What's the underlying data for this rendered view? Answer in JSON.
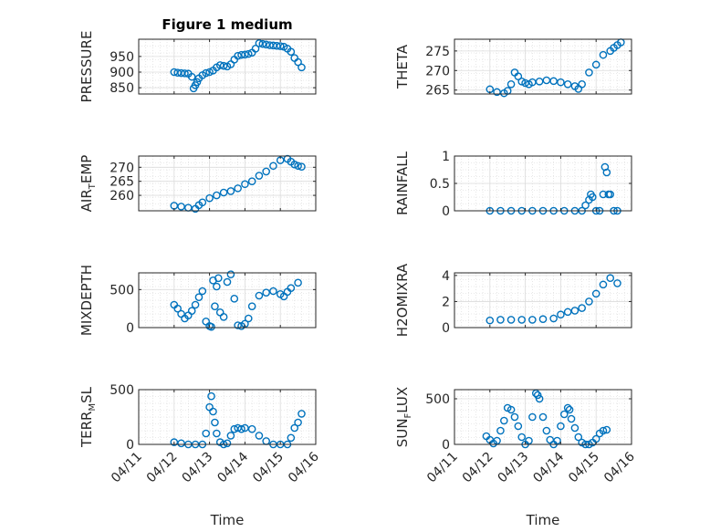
{
  "chart_data": [
    {
      "type": "scatter",
      "title": "Figure 1 medium",
      "ylabel": "PRESSURE",
      "ylim": [
        830,
        1005
      ],
      "yticks": [
        "850",
        "900",
        "950"
      ],
      "xlim": [
        0,
        5
      ],
      "xticks": [],
      "grid": true,
      "color": "#0072bd",
      "x": [
        1.0,
        1.1,
        1.2,
        1.3,
        1.4,
        1.5,
        1.55,
        1.6,
        1.65,
        1.7,
        1.8,
        1.9,
        2.0,
        2.1,
        2.2,
        2.3,
        2.4,
        2.5,
        2.6,
        2.7,
        2.8,
        2.9,
        3.0,
        3.1,
        3.2,
        3.3,
        3.4,
        3.5,
        3.6,
        3.7,
        3.8,
        3.9,
        4.0,
        4.1,
        4.2,
        4.3,
        4.4,
        4.5,
        4.6
      ],
      "y": [
        900,
        898,
        897,
        896,
        895,
        885,
        848,
        858,
        868,
        880,
        890,
        897,
        900,
        905,
        915,
        922,
        920,
        918,
        925,
        940,
        952,
        955,
        956,
        958,
        962,
        975,
        992,
        990,
        988,
        986,
        985,
        984,
        983,
        981,
        975,
        965,
        945,
        932,
        915
      ]
    },
    {
      "type": "scatter",
      "ylabel": "THETA",
      "ylim": [
        264,
        278
      ],
      "yticks": [
        "265",
        "270",
        "275"
      ],
      "xlim": [
        0,
        5
      ],
      "xticks": [],
      "grid": true,
      "color": "#0072bd",
      "x": [
        1.0,
        1.2,
        1.4,
        1.5,
        1.6,
        1.7,
        1.8,
        1.9,
        2.0,
        2.1,
        2.2,
        2.4,
        2.6,
        2.8,
        3.0,
        3.2,
        3.4,
        3.5,
        3.6,
        3.8,
        4.0,
        4.2,
        4.4,
        4.5,
        4.6,
        4.7
      ],
      "y": [
        265.2,
        264.5,
        264.2,
        264.8,
        266.5,
        269.5,
        268.5,
        267.2,
        266.8,
        266.5,
        267.0,
        267.2,
        267.5,
        267.3,
        267.0,
        266.5,
        266.0,
        265.3,
        266.5,
        269.5,
        271.5,
        274.0,
        275.0,
        275.8,
        276.5,
        277.2
      ]
    },
    {
      "type": "scatter",
      "ylabel": "AIR_TEMP",
      "ylim": [
        254.5,
        274
      ],
      "yticks": [
        "260",
        "265",
        "270"
      ],
      "xlim": [
        0,
        5
      ],
      "xticks": [],
      "grid": true,
      "color": "#0072bd",
      "x": [
        1.0,
        1.2,
        1.4,
        1.6,
        1.7,
        1.8,
        2.0,
        2.2,
        2.4,
        2.6,
        2.8,
        3.0,
        3.2,
        3.4,
        3.6,
        3.8,
        4.0,
        4.2,
        4.3,
        4.4,
        4.5,
        4.6
      ],
      "y": [
        256.3,
        256.0,
        255.6,
        255.2,
        256.5,
        257.5,
        259.0,
        260.0,
        261.0,
        261.5,
        262.5,
        264.0,
        265.0,
        267.0,
        268.5,
        270.5,
        272.5,
        273.0,
        272.0,
        271.0,
        270.5,
        270.2
      ]
    },
    {
      "type": "scatter",
      "ylabel": "RAINFALL",
      "ylim": [
        0,
        1
      ],
      "yticks": [
        "0",
        "0.5",
        "1"
      ],
      "xlim": [
        0,
        5
      ],
      "xticks": [],
      "grid": true,
      "color": "#0072bd",
      "x": [
        1.0,
        1.3,
        1.6,
        1.9,
        2.2,
        2.5,
        2.8,
        3.1,
        3.4,
        3.6,
        3.7,
        3.8,
        3.85,
        3.9,
        4.0,
        4.1,
        4.2,
        4.25,
        4.3,
        4.35,
        4.4,
        4.5,
        4.6
      ],
      "y": [
        0,
        0,
        0,
        0,
        0,
        0,
        0,
        0,
        0,
        0,
        0.1,
        0.2,
        0.3,
        0.25,
        0,
        0,
        0.3,
        0.8,
        0.7,
        0.3,
        0.3,
        0,
        0
      ]
    },
    {
      "type": "scatter",
      "ylabel": "MIXDEPTH",
      "ylim": [
        0,
        720
      ],
      "yticks": [
        "0",
        "500"
      ],
      "xlim": [
        0,
        5
      ],
      "xticks": [],
      "grid": true,
      "color": "#0072bd",
      "x": [
        1.0,
        1.1,
        1.2,
        1.3,
        1.4,
        1.5,
        1.6,
        1.7,
        1.8,
        1.9,
        2.0,
        2.05,
        2.1,
        2.15,
        2.2,
        2.25,
        2.3,
        2.4,
        2.5,
        2.6,
        2.7,
        2.8,
        2.9,
        3.0,
        3.1,
        3.2,
        3.4,
        3.6,
        3.8,
        4.0,
        4.1,
        4.2,
        4.3,
        4.5
      ],
      "y": [
        300,
        250,
        180,
        120,
        160,
        220,
        300,
        400,
        480,
        80,
        20,
        10,
        620,
        280,
        540,
        650,
        200,
        140,
        600,
        700,
        380,
        30,
        20,
        50,
        120,
        280,
        420,
        460,
        480,
        440,
        410,
        470,
        520,
        590
      ]
    },
    {
      "type": "scatter",
      "ylabel": "H2OMIXRA",
      "ylim": [
        0,
        4.2
      ],
      "yticks": [
        "0",
        "2",
        "4"
      ],
      "xlim": [
        0,
        5
      ],
      "xticks": [],
      "grid": true,
      "color": "#0072bd",
      "x": [
        1.0,
        1.3,
        1.6,
        1.9,
        2.2,
        2.5,
        2.8,
        3.0,
        3.2,
        3.4,
        3.6,
        3.8,
        4.0,
        4.2,
        4.4,
        4.6
      ],
      "y": [
        0.55,
        0.6,
        0.6,
        0.6,
        0.6,
        0.65,
        0.7,
        1.0,
        1.2,
        1.3,
        1.5,
        2.0,
        2.6,
        3.3,
        3.8,
        3.4
      ]
    },
    {
      "type": "scatter",
      "ylabel": "TERR_MSL",
      "ylim": [
        0,
        500
      ],
      "yticks": [
        "0",
        "500"
      ],
      "xlim": [
        0,
        5
      ],
      "xticks": [
        "04/11",
        "04/12",
        "04/13",
        "04/14",
        "04/15",
        "04/16"
      ],
      "xlabel": "Time",
      "grid": true,
      "color": "#0072bd",
      "x": [
        1.0,
        1.2,
        1.4,
        1.6,
        1.8,
        1.9,
        2.0,
        2.05,
        2.1,
        2.15,
        2.2,
        2.3,
        2.4,
        2.5,
        2.6,
        2.7,
        2.8,
        2.9,
        3.0,
        3.2,
        3.4,
        3.6,
        3.8,
        4.0,
        4.2,
        4.3,
        4.4,
        4.5,
        4.6
      ],
      "y": [
        20,
        10,
        0,
        0,
        0,
        100,
        340,
        440,
        300,
        200,
        100,
        20,
        0,
        10,
        80,
        140,
        150,
        140,
        150,
        140,
        80,
        30,
        0,
        0,
        0,
        60,
        150,
        200,
        280
      ]
    },
    {
      "type": "scatter",
      "ylabel": "SUN_FLUX",
      "ylim": [
        0,
        600
      ],
      "yticks": [
        "0",
        "500"
      ],
      "xlim": [
        0,
        5
      ],
      "xticks": [
        "04/11",
        "04/12",
        "04/13",
        "04/14",
        "04/15",
        "04/16"
      ],
      "xlabel": "Time",
      "grid": true,
      "color": "#0072bd",
      "x": [
        0.9,
        1.0,
        1.1,
        1.2,
        1.3,
        1.4,
        1.5,
        1.6,
        1.7,
        1.8,
        1.9,
        2.0,
        2.1,
        2.2,
        2.3,
        2.35,
        2.4,
        2.5,
        2.6,
        2.7,
        2.8,
        2.9,
        3.0,
        3.1,
        3.2,
        3.25,
        3.3,
        3.4,
        3.5,
        3.6,
        3.7,
        3.8,
        3.9,
        4.0,
        4.1,
        4.2,
        4.3
      ],
      "y": [
        90,
        50,
        10,
        40,
        150,
        260,
        400,
        380,
        300,
        200,
        80,
        0,
        40,
        300,
        560,
        540,
        500,
        300,
        150,
        50,
        0,
        40,
        200,
        330,
        400,
        380,
        280,
        180,
        80,
        20,
        0,
        0,
        20,
        60,
        120,
        150,
        160
      ]
    }
  ]
}
